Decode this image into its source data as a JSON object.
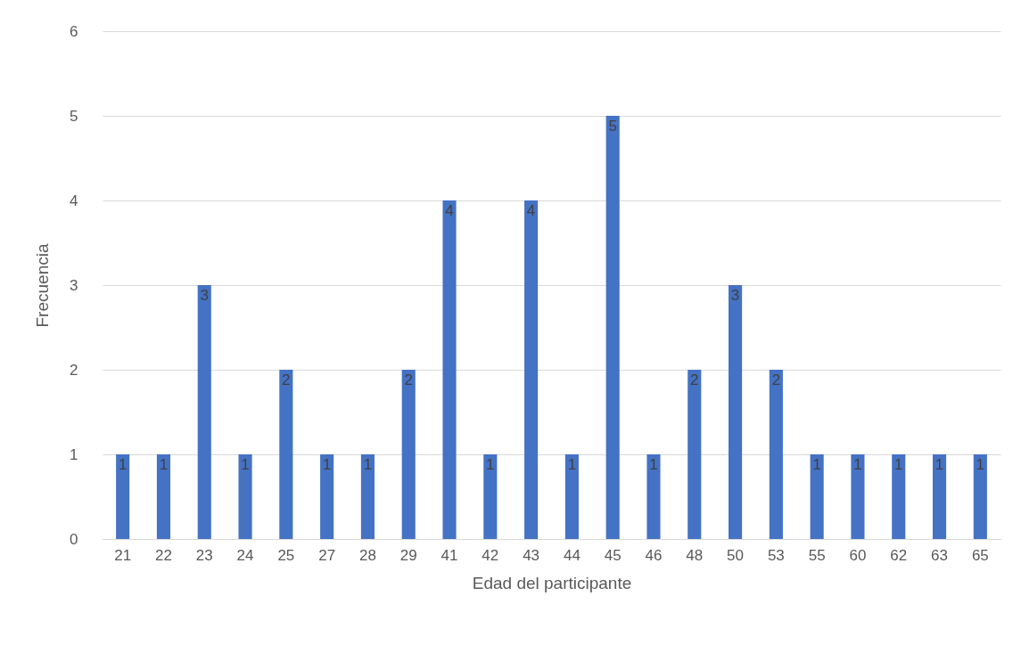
{
  "chart_data": {
    "type": "bar",
    "xlabel": "Edad del participante",
    "ylabel": "Frecuencia",
    "categories": [
      "21",
      "22",
      "23",
      "24",
      "25",
      "27",
      "28",
      "29",
      "41",
      "42",
      "43",
      "44",
      "45",
      "46",
      "48",
      "50",
      "53",
      "55",
      "60",
      "62",
      "63",
      "65"
    ],
    "values": [
      1,
      1,
      3,
      1,
      2,
      1,
      1,
      2,
      4,
      1,
      4,
      1,
      5,
      1,
      2,
      3,
      2,
      1,
      1,
      1,
      1,
      1
    ],
    "color": "#4472c4",
    "ylim": [
      0,
      6
    ],
    "yticks": [
      0,
      1,
      2,
      3,
      4,
      5,
      6
    ],
    "grid": "y",
    "data_labels": true
  }
}
